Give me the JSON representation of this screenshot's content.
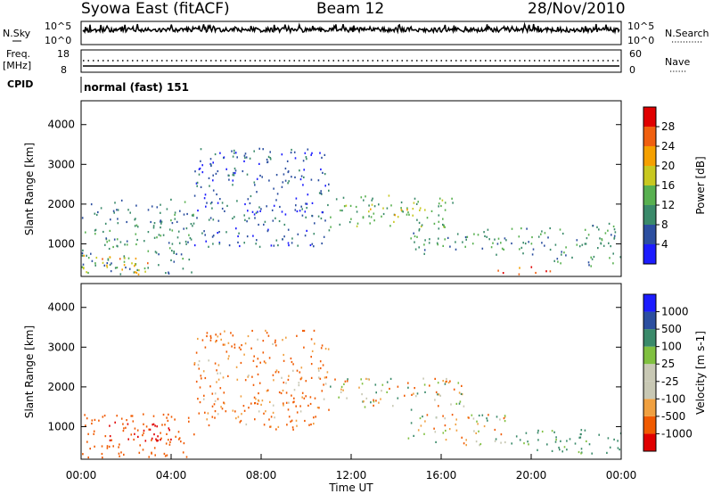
{
  "header": {
    "station": "Syowa East (fitACF)",
    "beam": "Beam 12",
    "date": "28/Nov/2010"
  },
  "top_panels": {
    "nsky_label": "N.Sky",
    "nsky_ticks": [
      "10^5",
      "10^0"
    ],
    "nsearch_label": "N.Search",
    "nsearch_ticks": [
      "10^5",
      "10^0"
    ],
    "freq_label_1": "Freq.",
    "freq_label_2": "[MHz]",
    "freq_ticks": [
      "18",
      "8"
    ],
    "nave_label": "Nave",
    "nave_ticks": [
      "60",
      "0"
    ],
    "cpid_label": "CPID",
    "cpid_text": "normal (fast) 151"
  },
  "colors": {
    "power_scale": [
      "#1c1cff",
      "#2c4fa0",
      "#3a8a6a",
      "#58b050",
      "#c8c820",
      "#f5a000",
      "#f06010",
      "#e00000"
    ],
    "velocity_scale": [
      "#e00000",
      "#f05a00",
      "#f0a040",
      "#c8c8b4",
      "#c8c8b4",
      "#80c040",
      "#3a8a6a",
      "#2c4fa0",
      "#1c1cff"
    ],
    "ground_scatter": "#c8c8b4"
  },
  "chart_data": [
    {
      "type": "heatmap",
      "panel": "power",
      "xlabel": "",
      "ylabel": "Slant Range [km]",
      "ylim": [
        180,
        4600
      ],
      "y_ticks": [
        "1000",
        "2000",
        "3000",
        "4000"
      ],
      "colorbar_label": "Power [dB]",
      "colorbar_ticks": [
        "4",
        "8",
        "12",
        "16",
        "20",
        "24",
        "28"
      ],
      "colorbar_range": [
        0,
        30
      ],
      "regions": [
        {
          "t0": 0.0,
          "t1": 5.0,
          "r0": 200,
          "r1": 2100,
          "value": 9
        },
        {
          "t0": 0.0,
          "t1": 3.0,
          "r0": 200,
          "r1": 700,
          "value": 20
        },
        {
          "t0": 11.0,
          "t1": 16.5,
          "r0": 1400,
          "r1": 2200,
          "value": 12
        },
        {
          "t0": 12.5,
          "t1": 15.5,
          "r0": 1650,
          "r1": 1900,
          "value": 18
        },
        {
          "t0": 14.5,
          "t1": 21.0,
          "r0": 700,
          "r1": 1400,
          "value": 10
        },
        {
          "t0": 18.5,
          "t1": 21.0,
          "r0": 200,
          "r1": 400,
          "value": 26
        },
        {
          "t0": 5.0,
          "t1": 11.0,
          "r0": 900,
          "r1": 3400,
          "value": 6
        },
        {
          "t0": 21.0,
          "t1": 24.0,
          "r0": 400,
          "r1": 1500,
          "value": 10
        }
      ]
    },
    {
      "type": "heatmap",
      "panel": "velocity",
      "xlabel": "Time UT",
      "ylabel": "Slant Range [km]",
      "ylim": [
        180,
        4600
      ],
      "y_ticks": [
        "1000",
        "2000",
        "3000",
        "4000"
      ],
      "x_ticks": [
        "00:00",
        "04:00",
        "08:00",
        "12:00",
        "16:00",
        "20:00",
        "00:00"
      ],
      "xlim": [
        0,
        24
      ],
      "colorbar_label": "Velocity [m s-1]",
      "colorbar_ticks": [
        "1000",
        "500",
        "100",
        "25",
        "-25",
        "-100",
        "-500",
        "-1000"
      ],
      "regions": [
        {
          "t0": 0.0,
          "t1": 5.0,
          "r0": 200,
          "r1": 1300,
          "value": -300
        },
        {
          "t0": 1.0,
          "t1": 4.0,
          "r0": 600,
          "r1": 1100,
          "value": -700
        },
        {
          "t0": 11.0,
          "t1": 17.0,
          "r0": 1400,
          "r1": 2200,
          "value": 0
        },
        {
          "t0": 14.5,
          "t1": 19.0,
          "r0": 500,
          "r1": 1300,
          "value": 0
        },
        {
          "t0": 19.0,
          "t1": 24.0,
          "r0": 300,
          "r1": 900,
          "value": 200
        },
        {
          "t0": 5.0,
          "t1": 11.0,
          "r0": 900,
          "r1": 3400,
          "value": -150
        }
      ]
    }
  ],
  "title_parts": {
    "velocity_unit_sup": "-1"
  }
}
